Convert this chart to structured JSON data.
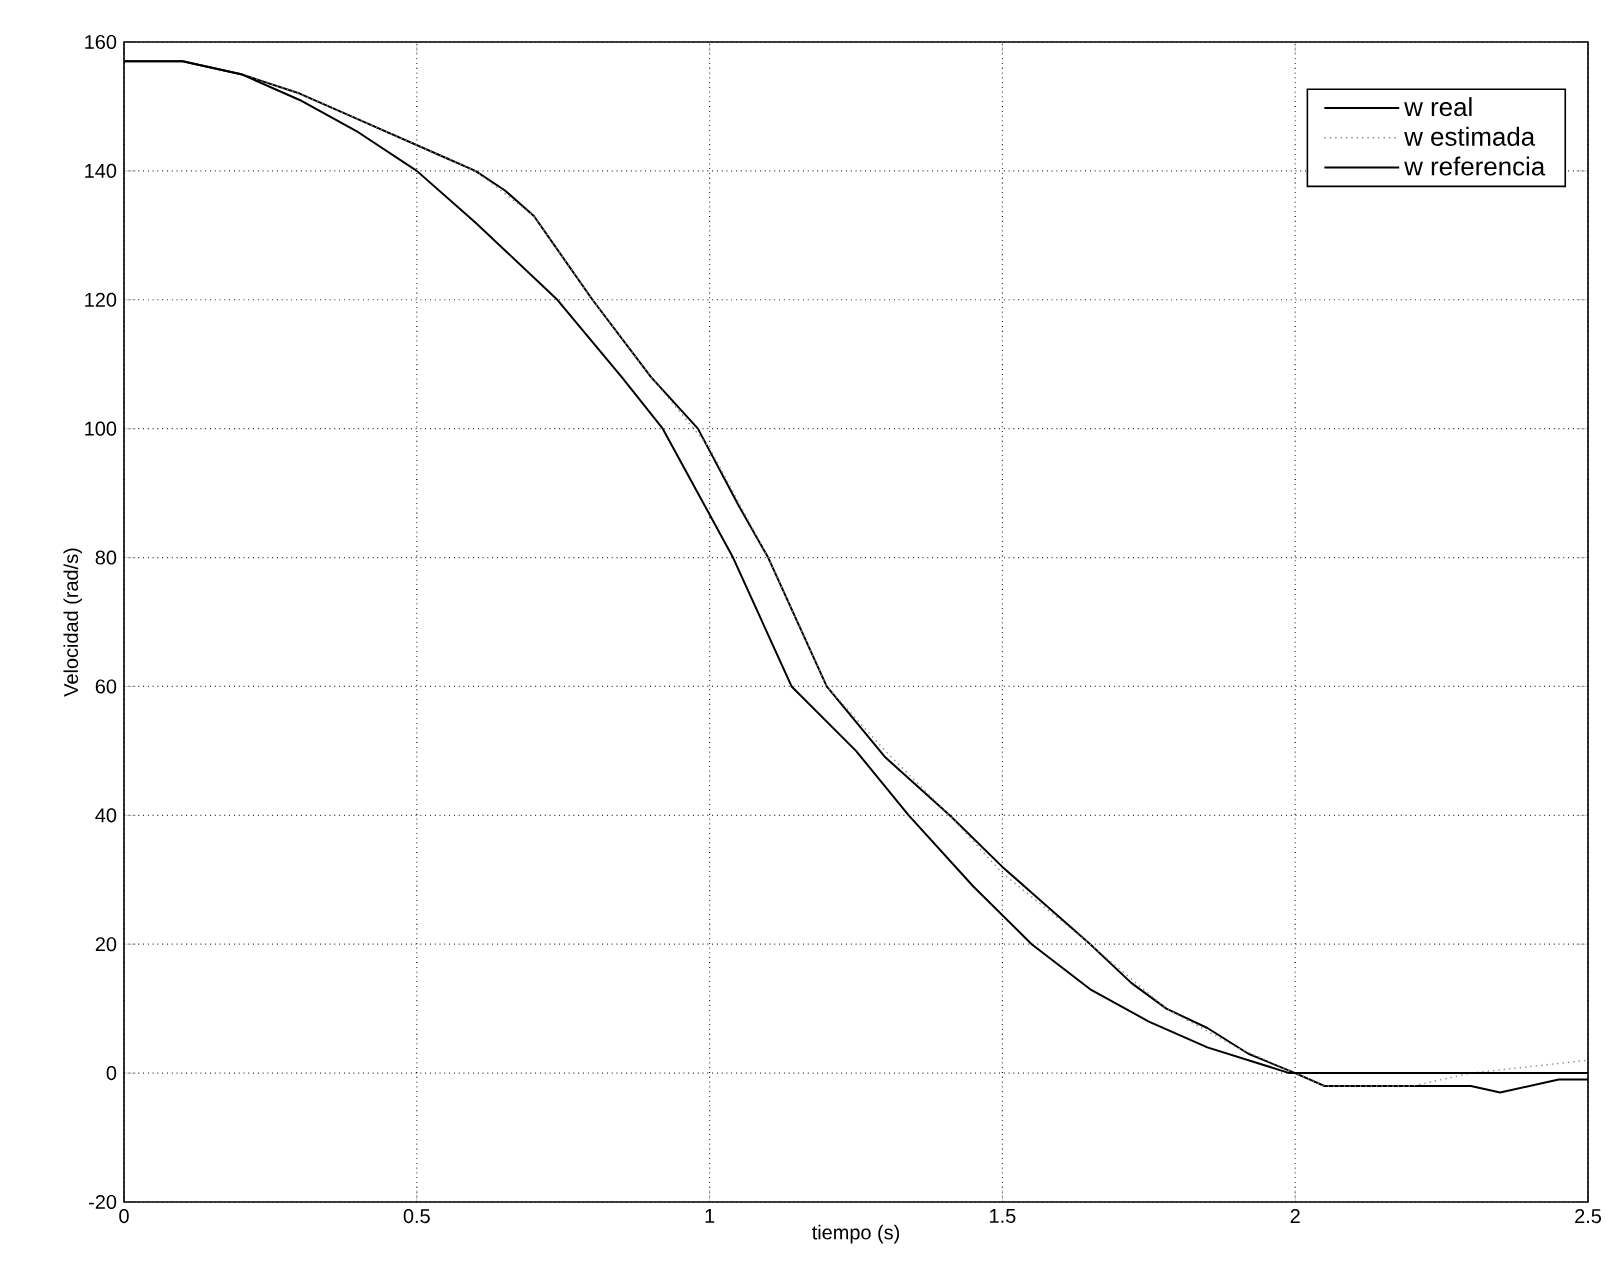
{
  "chart_data": {
    "type": "line",
    "xlabel": "tiempo (s)",
    "ylabel": "Velocidad (rad/s)",
    "xlim": [
      0,
      2.5
    ],
    "ylim": [
      -20,
      160
    ],
    "xticks": [
      0,
      0.5,
      1,
      1.5,
      2,
      2.5
    ],
    "yticks": [
      -20,
      0,
      20,
      40,
      60,
      80,
      100,
      120,
      140,
      160
    ],
    "grid": true,
    "legend": "top right",
    "marker": "none",
    "series": [
      {
        "name": "w real",
        "color": "#000000",
        "line_style": "solid",
        "x": [
          0,
          0.1,
          0.15,
          0.2,
          0.3,
          0.4,
          0.45,
          0.5,
          0.55,
          0.6,
          0.65,
          0.7,
          0.8,
          0.9,
          0.98,
          1.05,
          1.1,
          1.15,
          1.2,
          1.3,
          1.41,
          1.5,
          1.55,
          1.65,
          1.72,
          1.78,
          1.85,
          1.92,
          2.0,
          2.05,
          2.1,
          2.2,
          2.3,
          2.35,
          2.4,
          2.45,
          2.5
        ],
        "values": [
          157,
          157,
          156,
          155,
          152,
          148,
          146,
          144,
          142,
          140,
          137,
          133,
          120,
          108,
          100,
          88,
          80,
          70,
          60,
          49,
          40,
          32,
          28,
          20,
          14,
          10,
          7,
          3,
          0,
          -2,
          -2,
          -2,
          -2,
          -3,
          -2,
          -1,
          -1
        ]
      },
      {
        "name": "w estimada",
        "color": "#888888",
        "line_style": "dotted",
        "x": [
          0,
          0.1,
          0.2,
          0.3,
          0.4,
          0.5,
          0.6,
          0.7,
          0.8,
          0.9,
          1.0,
          1.1,
          1.2,
          1.3,
          1.41,
          1.5,
          1.65,
          1.78,
          1.9,
          2.0,
          2.05,
          2.1,
          2.2,
          2.3,
          2.4,
          2.5
        ],
        "values": [
          157,
          157,
          155,
          152,
          148,
          144,
          140,
          133,
          120,
          108,
          97,
          80,
          60,
          50,
          40,
          31,
          20,
          10,
          4,
          0,
          -2,
          -2,
          -2,
          0,
          1,
          2
        ]
      },
      {
        "name": "w referencia",
        "color": "#000000",
        "line_style": "solid",
        "x": [
          0,
          0.1,
          0.2,
          0.3,
          0.4,
          0.5,
          0.6,
          0.74,
          0.85,
          0.92,
          1.04,
          1.14,
          1.25,
          1.34,
          1.45,
          1.55,
          1.65,
          1.75,
          1.85,
          1.99,
          2.1,
          2.3,
          2.5
        ],
        "values": [
          157,
          157,
          155,
          151,
          146,
          140,
          132,
          120,
          108,
          100,
          80,
          60,
          50,
          40,
          29,
          20,
          13,
          8,
          4,
          0,
          0,
          0,
          0
        ]
      }
    ]
  }
}
